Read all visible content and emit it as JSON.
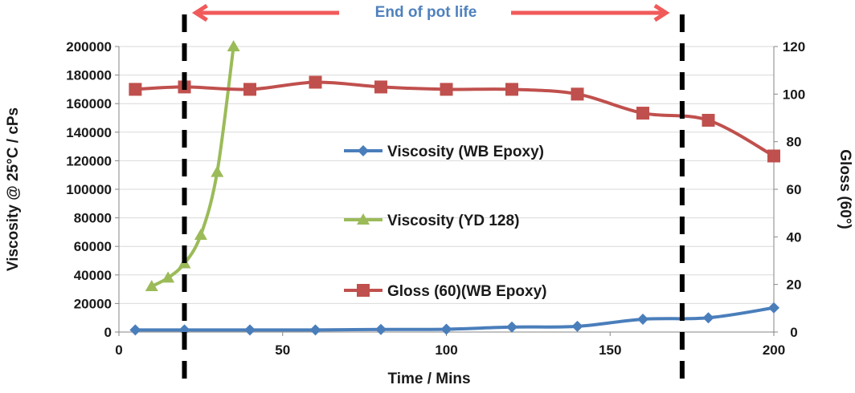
{
  "chart_data": {
    "type": "line",
    "x_axis": {
      "label": "Time / Mins",
      "range": [
        0,
        200
      ],
      "ticks": [
        "0",
        "50",
        "100",
        "150",
        "200"
      ]
    },
    "y_axis_left": {
      "label": "Viscosity @ 25°C / cPs",
      "range": [
        0,
        200000
      ],
      "ticks": [
        "0",
        "20000",
        "40000",
        "60000",
        "80000",
        "100000",
        "120000",
        "140000",
        "160000",
        "180000",
        "200000"
      ]
    },
    "y_axis_right": {
      "label": "Gloss (60°)",
      "range": [
        0,
        120
      ],
      "ticks": [
        "0",
        "20",
        "40",
        "60",
        "80",
        "100",
        "120"
      ]
    },
    "grid": "horizontal",
    "series": [
      {
        "name": "Viscosity (WB Epoxy)",
        "axis": "left",
        "marker": "diamond",
        "color": "#4a7ebb",
        "x": [
          5,
          20,
          40,
          60,
          80,
          100,
          120,
          140,
          160,
          180,
          200
        ],
        "y": [
          1500,
          1500,
          1500,
          1500,
          1800,
          2000,
          3500,
          4000,
          9000,
          10000,
          17000
        ]
      },
      {
        "name": "Viscosity (YD 128)",
        "axis": "left",
        "marker": "triangle",
        "color": "#9bbb59",
        "x": [
          10,
          15,
          20,
          25,
          30,
          35
        ],
        "y": [
          32000,
          38000,
          48000,
          68000,
          112000,
          200000
        ]
      },
      {
        "name": "Gloss (60)(WB Epoxy)",
        "axis": "right",
        "marker": "square",
        "color": "#c0504d",
        "x": [
          5,
          20,
          40,
          60,
          80,
          100,
          120,
          140,
          160,
          180,
          200
        ],
        "y": [
          102,
          103,
          102,
          105,
          103,
          102,
          102,
          100,
          92,
          89,
          74
        ]
      }
    ],
    "annotations": {
      "pot_life_text": "End of pot life",
      "pot_life_text_color": "#4f81bd",
      "arrow_color": "#f15a5a",
      "vlines_x": [
        20,
        172
      ]
    }
  }
}
